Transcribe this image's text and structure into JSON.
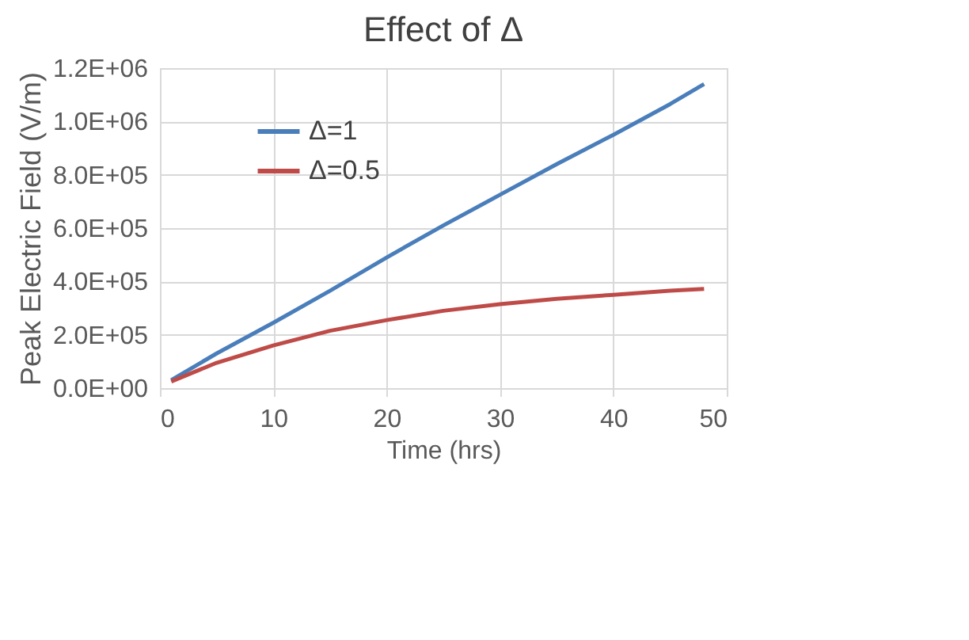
{
  "chart_data": {
    "type": "line",
    "title": "Effect of Δ",
    "xlabel": "Time (hrs)",
    "ylabel": "Peak Electric Field (V/m)",
    "x": [
      1,
      5,
      10,
      15,
      20,
      25,
      30,
      35,
      40,
      45,
      48
    ],
    "series": [
      {
        "name": "Δ=1",
        "color": "#4a7ebb",
        "values": [
          30000,
          130000,
          245000,
          365000,
          490000,
          610000,
          725000,
          840000,
          950000,
          1065000,
          1140000
        ]
      },
      {
        "name": "Δ=0.5",
        "color": "#be4b48",
        "values": [
          25000,
          95000,
          160000,
          215000,
          255000,
          290000,
          315000,
          335000,
          350000,
          365000,
          372000
        ]
      }
    ],
    "xlim": [
      0,
      50
    ],
    "xticks": [
      0,
      10,
      20,
      30,
      40,
      50
    ],
    "ylim": [
      0,
      1200000
    ],
    "yticks": [
      {
        "value": 0,
        "label": "0.0E+00"
      },
      {
        "value": 200000,
        "label": "2.0E+05"
      },
      {
        "value": 400000,
        "label": "4.0E+05"
      },
      {
        "value": 600000,
        "label": "6.0E+05"
      },
      {
        "value": 800000,
        "label": "8.0E+05"
      },
      {
        "value": 1000000,
        "label": "1.0E+06"
      },
      {
        "value": 1200000,
        "label": "1.2E+06"
      }
    ],
    "grid": true,
    "legend": "top left",
    "line_style": "solid",
    "marker": "none"
  }
}
